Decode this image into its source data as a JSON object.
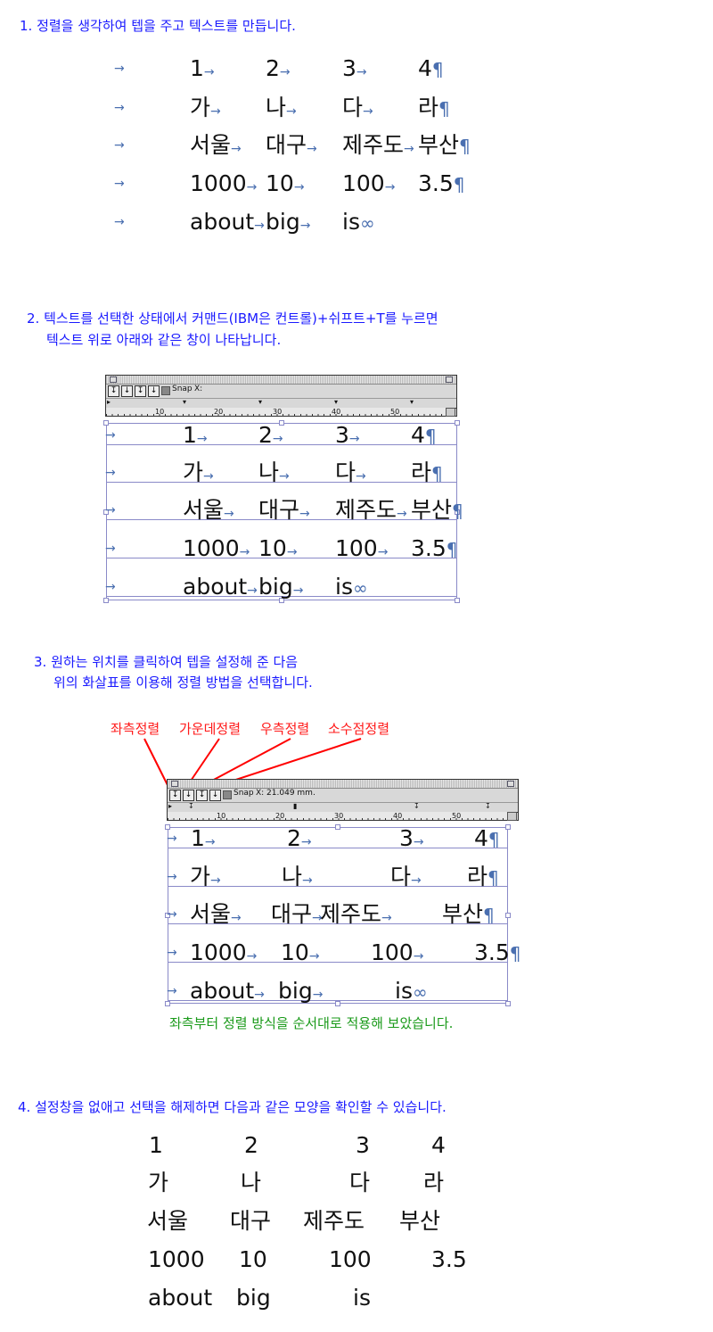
{
  "section1": {
    "title": "1. 정렬을 생각하여 텝을 주고 텍스트를 만듭니다.",
    "rows": [
      [
        "1",
        "2",
        "3",
        "4"
      ],
      [
        "가",
        "나",
        "다",
        "라"
      ],
      [
        "서울",
        "대구",
        "제주도",
        "부산"
      ],
      [
        "1000",
        "10",
        "100",
        "3.5"
      ],
      [
        "about",
        "big",
        "is"
      ]
    ]
  },
  "section2": {
    "line1": "2. 텍스트를 선택한 상태에서 커맨드(IBM은 컨트롤)+쉬프트+T를 누르면",
    "line2": "텍스트 위로 아래와 같은 창이 나타납니다.",
    "panel": {
      "snap_label": "Snap",
      "x_label": "X:",
      "x_value": "",
      "ruler": [
        "10",
        "20",
        "30",
        "40",
        "50"
      ]
    },
    "rows": [
      [
        "1",
        "2",
        "3",
        "4"
      ],
      [
        "가",
        "나",
        "다",
        "라"
      ],
      [
        "서울",
        "대구",
        "제주도",
        "부산"
      ],
      [
        "1000",
        "10",
        "100",
        "3.5"
      ],
      [
        "about",
        "big",
        "is"
      ]
    ]
  },
  "section3": {
    "line1": "3. 원하는 위치를 클릭하여 텝을 설정해 준 다음",
    "line2": "위의 화살표를 이용해 정렬 방법을 선택합니다.",
    "labels": [
      "좌측정렬",
      "가운데정렬",
      "우측정렬",
      "소수점정렬"
    ],
    "panel": {
      "snap_label": "Snap",
      "x_label": "X:",
      "x_value": "21.049 mm.",
      "ruler": [
        "10",
        "20",
        "30",
        "40",
        "50"
      ]
    },
    "rows": [
      [
        "1",
        "2",
        "3",
        "4"
      ],
      [
        "가",
        "나",
        "다",
        "라"
      ],
      [
        "서울",
        "대구",
        "제주도",
        "부산"
      ],
      [
        "1000",
        "10",
        "100",
        "3.5"
      ],
      [
        "about",
        "big",
        "is"
      ]
    ],
    "caption": "좌측부터 정렬 방식을 순서대로 적용해 보았습니다."
  },
  "section4": {
    "title": "4. 설정창을 없애고 선택을 해제하면 다음과 같은 모양을 확인할 수 있습니다.",
    "rows": [
      [
        "1",
        "2",
        "3",
        "4"
      ],
      [
        "가",
        "나",
        "다",
        "라"
      ],
      [
        "서울",
        "대구",
        "제주도",
        "부산"
      ],
      [
        "1000",
        "10",
        "100",
        "3.5"
      ],
      [
        "about",
        "big",
        "is"
      ]
    ]
  },
  "marks": {
    "tab": "→",
    "paragraph": "¶",
    "end_of_story": "∞",
    "tab_buttons": [
      "↧",
      "↓",
      "↧",
      "↓"
    ]
  },
  "colors": {
    "step_text": "#1a1aff",
    "annotation": "#ff1a1a",
    "caption": "#1a9a1a",
    "marks": "#4a6fb0"
  }
}
